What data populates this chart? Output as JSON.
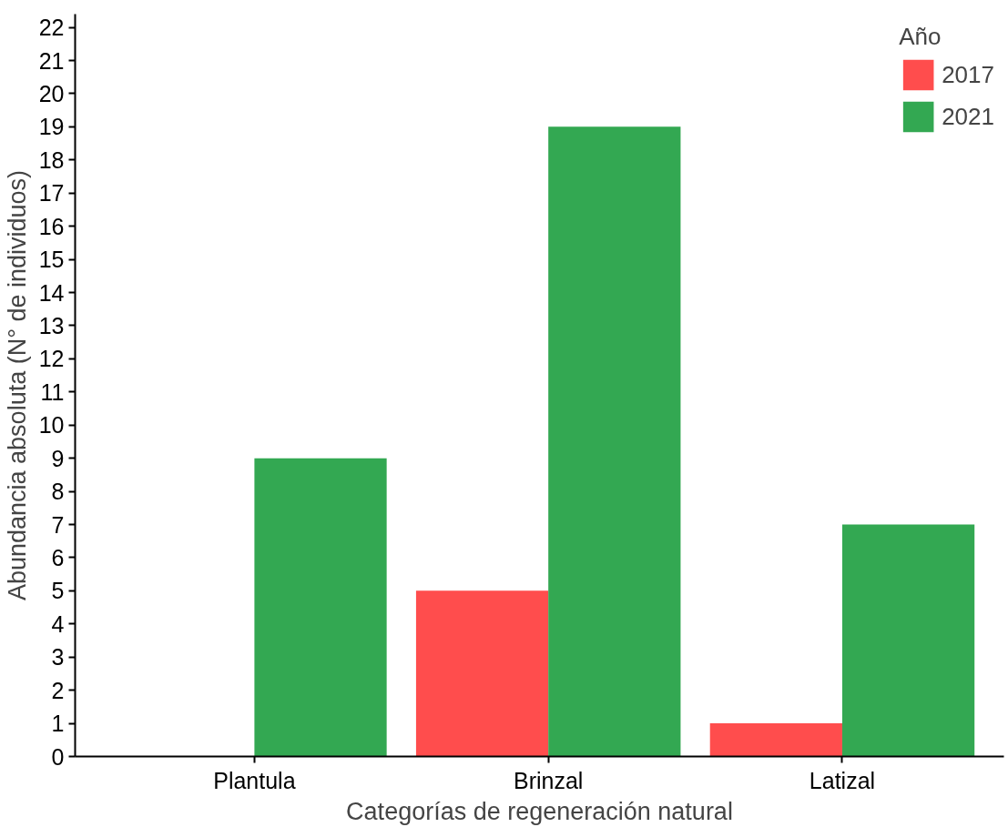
{
  "chart_data": {
    "type": "bar",
    "xlabel": "Categorías de regeneración natural",
    "ylabel": "Abundancia absoluta (N° de individuos)",
    "legend_title": "Año",
    "categories": [
      "Plantula",
      "Brinzal",
      "Latizal"
    ],
    "series": [
      {
        "name": "2017",
        "color": "#ff4d4d",
        "values": [
          0,
          5,
          1
        ]
      },
      {
        "name": "2021",
        "color": "#33a852",
        "values": [
          9,
          19,
          7
        ]
      }
    ],
    "ylim": [
      0,
      22.4
    ],
    "yticks": [
      0,
      1,
      2,
      3,
      4,
      5,
      6,
      7,
      8,
      9,
      10,
      11,
      12,
      13,
      14,
      15,
      16,
      17,
      18,
      19,
      20,
      21,
      22
    ],
    "grid": false,
    "legend": "top right"
  }
}
